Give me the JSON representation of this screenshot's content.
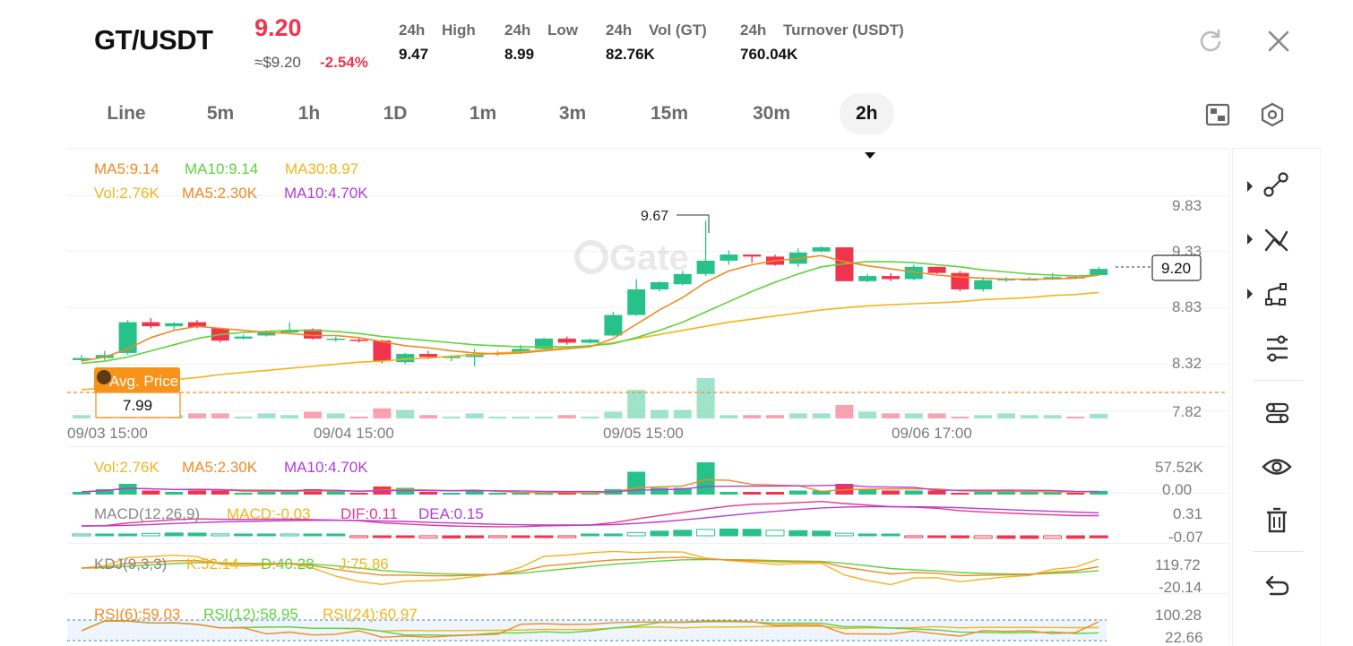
{
  "header": {
    "pair": "GT/USDT",
    "last_price": "9.20",
    "usd_price": "≈$9.20",
    "change": "-2.54%",
    "stats": [
      {
        "period": "24h",
        "label": "High",
        "value": "9.47"
      },
      {
        "period": "24h",
        "label": "Low",
        "value": "8.99"
      },
      {
        "period": "24h",
        "label": "Vol (GT)",
        "value": "82.76K"
      },
      {
        "period": "24h",
        "label": "Turnover (USDT)",
        "value": "760.04K"
      }
    ]
  },
  "tabs": [
    "Line",
    "5m",
    "1h",
    "1D",
    "1m",
    "3m",
    "15m",
    "30m"
  ],
  "active_interval": "2h",
  "main_chart": {
    "ma_legend": {
      "ma5": "MA5:9.14",
      "ma10": "MA10:9.14",
      "ma30": "MA30:8.97"
    },
    "vol_legend": {
      "vol": "Vol:2.76K",
      "ma5": "MA5:2.30K",
      "ma10": "MA10:4.70K"
    },
    "price_ticks": [
      "9.83",
      "9.33",
      "8.83",
      "8.32",
      "7.82"
    ],
    "time_ticks": [
      "09/03 15:00",
      "09/04 15:00",
      "09/05 15:00",
      "09/06 17:00"
    ],
    "current_price_tag": "9.20",
    "high_marker": "9.67",
    "avg_price_label": "Avg. Price",
    "avg_price_value": "7.99",
    "watermark": "Gate"
  },
  "volume_panel": {
    "legend": {
      "vol": "Vol:2.76K",
      "ma5": "MA5:2.30K",
      "ma10": "MA10:4.70K"
    },
    "ticks": [
      "57.52K",
      "0.00"
    ]
  },
  "macd_panel": {
    "legend": {
      "name": "MACD(12,26,9)",
      "macd": "MACD:-0.03",
      "dif": "DIF:0.11",
      "dea": "DEA:0.15"
    },
    "ticks": [
      "0.31",
      "-0.07"
    ]
  },
  "kdj_panel": {
    "legend": {
      "name": "KDJ(9,3,3)",
      "k": "K:52.14",
      "d": "D:40.28",
      "j": "J:75.86"
    },
    "ticks": [
      "119.72",
      "-20.14"
    ]
  },
  "rsi_panel": {
    "legend": {
      "r6": "RSI(6):59.03",
      "r12": "RSI(12):58.95",
      "r24": "RSI(24):60.97"
    },
    "ticks": [
      "100.28",
      "22.66"
    ]
  },
  "colors": {
    "up": "#27c28a",
    "down": "#f0344e",
    "ma5": "#f08a24",
    "ma10": "#5fd23e",
    "ma30": "#f2b51b",
    "purple": "#b23cd9",
    "pink": "#e8378c",
    "orange_badge": "#f7931a"
  },
  "sidebar_icons": [
    "trend-line-icon",
    "cross-lines-icon",
    "shape-icon",
    "settings-sliders-icon",
    "indicator-icon",
    "eye-icon",
    "trash-icon",
    "undo-icon"
  ],
  "chart_data": {
    "type": "candlestick",
    "title": "",
    "candles": [
      {
        "o": 8.31,
        "h": 8.36,
        "l": 8.3,
        "c": 8.33
      },
      {
        "o": 8.33,
        "h": 8.4,
        "l": 8.31,
        "c": 8.36
      },
      {
        "o": 8.38,
        "h": 8.7,
        "l": 8.36,
        "c": 8.68
      },
      {
        "o": 8.68,
        "h": 8.72,
        "l": 8.62,
        "c": 8.64
      },
      {
        "o": 8.64,
        "h": 8.68,
        "l": 8.61,
        "c": 8.67
      },
      {
        "o": 8.68,
        "h": 8.7,
        "l": 8.62,
        "c": 8.63
      },
      {
        "o": 8.62,
        "h": 8.63,
        "l": 8.48,
        "c": 8.5
      },
      {
        "o": 8.52,
        "h": 8.56,
        "l": 8.51,
        "c": 8.54
      },
      {
        "o": 8.55,
        "h": 8.6,
        "l": 8.54,
        "c": 8.58
      },
      {
        "o": 8.58,
        "h": 8.68,
        "l": 8.56,
        "c": 8.6
      },
      {
        "o": 8.61,
        "h": 8.62,
        "l": 8.51,
        "c": 8.52
      },
      {
        "o": 8.51,
        "h": 8.54,
        "l": 8.49,
        "c": 8.52
      },
      {
        "o": 8.51,
        "h": 8.53,
        "l": 8.48,
        "c": 8.5
      },
      {
        "o": 8.5,
        "h": 8.51,
        "l": 8.28,
        "c": 8.3
      },
      {
        "o": 8.29,
        "h": 8.38,
        "l": 8.27,
        "c": 8.37
      },
      {
        "o": 8.37,
        "h": 8.4,
        "l": 8.32,
        "c": 8.34
      },
      {
        "o": 8.33,
        "h": 8.36,
        "l": 8.3,
        "c": 8.35
      },
      {
        "o": 8.34,
        "h": 8.42,
        "l": 8.25,
        "c": 8.37
      },
      {
        "o": 8.37,
        "h": 8.4,
        "l": 8.35,
        "c": 8.38
      },
      {
        "o": 8.38,
        "h": 8.46,
        "l": 8.37,
        "c": 8.42
      },
      {
        "o": 8.42,
        "h": 8.53,
        "l": 8.41,
        "c": 8.52
      },
      {
        "o": 8.52,
        "h": 8.54,
        "l": 8.46,
        "c": 8.48
      },
      {
        "o": 8.48,
        "h": 8.52,
        "l": 8.47,
        "c": 8.51
      },
      {
        "o": 8.55,
        "h": 8.78,
        "l": 8.54,
        "c": 8.75
      },
      {
        "o": 8.75,
        "h": 9.1,
        "l": 8.74,
        "c": 9.0
      },
      {
        "o": 9.0,
        "h": 9.08,
        "l": 8.98,
        "c": 9.07
      },
      {
        "o": 9.05,
        "h": 9.18,
        "l": 9.04,
        "c": 9.15
      },
      {
        "o": 9.15,
        "h": 9.67,
        "l": 9.13,
        "c": 9.28
      },
      {
        "o": 9.28,
        "h": 9.38,
        "l": 9.24,
        "c": 9.34
      },
      {
        "o": 9.34,
        "h": 9.34,
        "l": 9.26,
        "c": 9.32
      },
      {
        "o": 9.32,
        "h": 9.34,
        "l": 9.23,
        "c": 9.24
      },
      {
        "o": 9.25,
        "h": 9.4,
        "l": 9.22,
        "c": 9.36
      },
      {
        "o": 9.37,
        "h": 9.42,
        "l": 9.36,
        "c": 9.41
      },
      {
        "o": 9.41,
        "h": 9.41,
        "l": 9.08,
        "c": 9.08
      },
      {
        "o": 9.08,
        "h": 9.15,
        "l": 9.07,
        "c": 9.13
      },
      {
        "o": 9.13,
        "h": 9.16,
        "l": 9.08,
        "c": 9.1
      },
      {
        "o": 9.1,
        "h": 9.24,
        "l": 9.09,
        "c": 9.22
      },
      {
        "o": 9.22,
        "h": 9.22,
        "l": 9.15,
        "c": 9.16
      },
      {
        "o": 9.16,
        "h": 9.18,
        "l": 8.98,
        "c": 9.0
      },
      {
        "o": 9.0,
        "h": 9.12,
        "l": 8.98,
        "c": 9.09
      },
      {
        "o": 9.09,
        "h": 9.12,
        "l": 9.07,
        "c": 9.1
      },
      {
        "o": 9.1,
        "h": 9.12,
        "l": 9.09,
        "c": 9.1
      },
      {
        "o": 9.11,
        "h": 9.16,
        "l": 9.1,
        "c": 9.12
      },
      {
        "o": 9.12,
        "h": 9.13,
        "l": 9.1,
        "c": 9.11
      },
      {
        "o": 9.14,
        "h": 9.22,
        "l": 9.13,
        "c": 9.2
      }
    ],
    "ma5": [
      8.3,
      8.34,
      8.42,
      8.53,
      8.6,
      8.64,
      8.62,
      8.6,
      8.58,
      8.57,
      8.55,
      8.55,
      8.53,
      8.49,
      8.45,
      8.43,
      8.4,
      8.38,
      8.37,
      8.38,
      8.4,
      8.42,
      8.44,
      8.52,
      8.66,
      8.8,
      8.92,
      9.07,
      9.18,
      9.24,
      9.28,
      9.3,
      9.33,
      9.27,
      9.23,
      9.2,
      9.17,
      9.14,
      9.12,
      9.11,
      9.1,
      9.1,
      9.1,
      9.11,
      9.14
    ],
    "ma10": [
      8.28,
      8.3,
      8.34,
      8.4,
      8.46,
      8.52,
      8.56,
      8.58,
      8.59,
      8.6,
      8.6,
      8.59,
      8.57,
      8.54,
      8.52,
      8.5,
      8.48,
      8.46,
      8.45,
      8.44,
      8.44,
      8.44,
      8.45,
      8.47,
      8.53,
      8.6,
      8.68,
      8.78,
      8.88,
      8.98,
      9.07,
      9.15,
      9.22,
      9.25,
      9.27,
      9.27,
      9.26,
      9.24,
      9.22,
      9.19,
      9.17,
      9.15,
      9.14,
      9.13,
      9.14
    ],
    "ma30": [
      8.02,
      8.04,
      8.06,
      8.09,
      8.12,
      8.14,
      8.17,
      8.19,
      8.21,
      8.23,
      8.25,
      8.27,
      8.29,
      8.3,
      8.32,
      8.33,
      8.35,
      8.36,
      8.38,
      8.39,
      8.41,
      8.43,
      8.45,
      8.48,
      8.52,
      8.56,
      8.6,
      8.64,
      8.68,
      8.71,
      8.74,
      8.77,
      8.8,
      8.82,
      8.84,
      8.85,
      8.86,
      8.87,
      8.88,
      8.9,
      8.91,
      8.92,
      8.94,
      8.95,
      8.97
    ],
    "volume": [
      2,
      4,
      8,
      3,
      2,
      3,
      3,
      1,
      3,
      2,
      4,
      3,
      1,
      6,
      5,
      2,
      1,
      3,
      1,
      1,
      1,
      2,
      1,
      4,
      17,
      5,
      5,
      24,
      2,
      2,
      2,
      3,
      3,
      8,
      4,
      3,
      3,
      3,
      1,
      2,
      3,
      2,
      2,
      1,
      2.76
    ],
    "ylim": [
      7.82,
      9.83
    ]
  }
}
